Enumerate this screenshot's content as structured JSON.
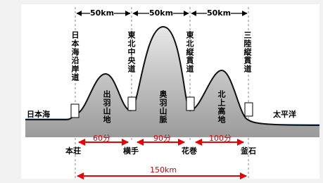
{
  "distances": [
    "50km",
    "50km",
    "50km"
  ],
  "roads": [
    "日本海沿岸道",
    "東北中央道",
    "東北縦貫道",
    "三陸縦貫道"
  ],
  "seas": [
    "日本海",
    "太平洋"
  ],
  "mountains": [
    "出羽山地",
    "奥羽山脈",
    "北上高地"
  ],
  "times": [
    "60分",
    "90分",
    "100分"
  ],
  "cities": [
    "本荘",
    "横手",
    "花巻",
    "釜石"
  ],
  "total": "150km"
}
